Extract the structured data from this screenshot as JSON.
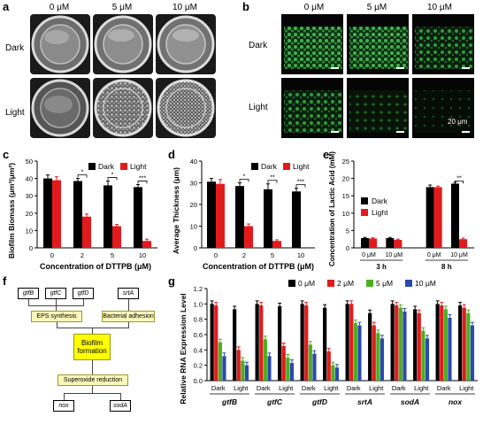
{
  "panel_labels": {
    "a": "a",
    "b": "b",
    "c": "c",
    "d": "d",
    "e": "e",
    "f": "f",
    "g": "g"
  },
  "panel_a": {
    "columns": [
      "0 μM",
      "5 μM",
      "10 μM"
    ],
    "rows": [
      "Dark",
      "Light"
    ]
  },
  "panel_b": {
    "columns": [
      "0 μM",
      "5 μM",
      "10 μM"
    ],
    "rows": [
      "Dark",
      "Light"
    ],
    "scale_label": "20 μm"
  },
  "panel_c": {
    "ylabel": "Biofilm Biomass (μm³/μm²)",
    "xlabel": "Concentration of DTTPB (μM)"
  },
  "panel_d": {
    "ylabel": "Average Thickness (μm)",
    "xlabel": "Concentration of DTTPB (μM)"
  },
  "panel_e": {
    "ylabel": "Concentration of Lactic Acid (mM)"
  },
  "panel_f": {
    "genes_top": [
      "gtfB",
      "gtfC",
      "gtfD",
      "srtA"
    ],
    "eps": "EPS synthesis",
    "adhesion": "Bacterial adhesion",
    "biofilm": "Biofilm formation",
    "superoxide": "Superoxide reduction",
    "genes_bottom": [
      "nox",
      "sodA"
    ]
  },
  "panel_g": {
    "ylabel": "Relative RNA Expression Level"
  },
  "chart_data": [
    {
      "id": "c",
      "type": "bar",
      "categories": [
        "0",
        "2",
        "5",
        "10"
      ],
      "series": [
        {
          "name": "Dark",
          "color": "#000000",
          "values": [
            40,
            38.5,
            36,
            35
          ],
          "err": [
            2,
            1.5,
            2.5,
            1.5
          ]
        },
        {
          "name": "Light",
          "color": "#e31a1c",
          "values": [
            39,
            18,
            12.5,
            4
          ],
          "err": [
            2,
            1.5,
            1,
            1
          ]
        }
      ],
      "ylim": [
        0,
        50
      ],
      "yticks": [
        0,
        10,
        20,
        30,
        40,
        50
      ],
      "sig": [
        "*",
        "*",
        "***"
      ],
      "legend": "top-right"
    },
    {
      "id": "d",
      "type": "bar",
      "categories": [
        "0",
        "2",
        "5",
        "10"
      ],
      "series": [
        {
          "name": "Dark",
          "color": "#000000",
          "values": [
            30.5,
            28.5,
            27,
            26
          ],
          "err": [
            1.5,
            1.5,
            2.5,
            1.5
          ]
        },
        {
          "name": "Light",
          "color": "#e31a1c",
          "values": [
            29.5,
            10,
            3.2,
            0
          ],
          "err": [
            2,
            1,
            0.5,
            0
          ]
        }
      ],
      "ylim": [
        0,
        40
      ],
      "yticks": [
        0,
        10,
        20,
        30,
        40
      ],
      "sig": [
        "*",
        "**",
        "***"
      ],
      "legend": "top-right"
    },
    {
      "id": "e",
      "type": "bar",
      "groups": [
        {
          "label": "3 h",
          "subs": [
            "0 μM",
            "10 μM"
          ]
        },
        {
          "label": "8 h",
          "subs": [
            "0 μM",
            "10 μM"
          ]
        }
      ],
      "series": [
        {
          "name": "Dark",
          "color": "#000000",
          "values": [
            2.8,
            2.8,
            17.5,
            18.5
          ],
          "err": [
            0.2,
            0.2,
            0.6,
            0.4
          ]
        },
        {
          "name": "Light",
          "color": "#e31a1c",
          "values": [
            2.7,
            2.3,
            17.5,
            2.5
          ],
          "err": [
            0.2,
            0.2,
            0.3,
            0.3
          ]
        }
      ],
      "ylim": [
        0,
        25
      ],
      "yticks": [
        0,
        5,
        10,
        15,
        20,
        25
      ],
      "sig": [
        "**"
      ],
      "legend": "middle-left"
    },
    {
      "id": "g",
      "type": "bar",
      "genes": [
        "gtfB",
        "gtfC",
        "gtfD",
        "srtA",
        "sodA",
        "nox"
      ],
      "conditions": [
        "Dark",
        "Light"
      ],
      "series": [
        {
          "name": "0 μM",
          "color": "#000000"
        },
        {
          "name": "2 μM",
          "color": "#e31a1c"
        },
        {
          "name": "5 μM",
          "color": "#4caf20"
        },
        {
          "name": "10 μM",
          "color": "#2a4ab0"
        }
      ],
      "values": [
        [
          [
            1.0,
            0.98,
            0.5,
            0.32
          ],
          [
            0.93,
            0.4,
            0.26,
            0.2
          ]
        ],
        [
          [
            1.0,
            0.98,
            0.54,
            0.32
          ],
          [
            0.97,
            0.45,
            0.3,
            0.23
          ]
        ],
        [
          [
            1.0,
            0.98,
            0.47,
            0.35
          ],
          [
            0.95,
            0.38,
            0.2,
            0.17
          ]
        ],
        [
          [
            1.0,
            1.0,
            0.75,
            0.72
          ],
          [
            0.88,
            0.72,
            0.62,
            0.55
          ]
        ],
        [
          [
            1.0,
            0.98,
            0.95,
            0.9
          ],
          [
            0.93,
            0.88,
            0.65,
            0.55
          ]
        ],
        [
          [
            1.0,
            0.98,
            0.93,
            0.82
          ],
          [
            0.98,
            0.95,
            0.88,
            0.72
          ]
        ]
      ],
      "ylim": [
        0,
        1.2
      ],
      "yticks": [
        0.0,
        0.2,
        0.4,
        0.6,
        0.8,
        1.0,
        1.2
      ],
      "legend": "top"
    }
  ]
}
